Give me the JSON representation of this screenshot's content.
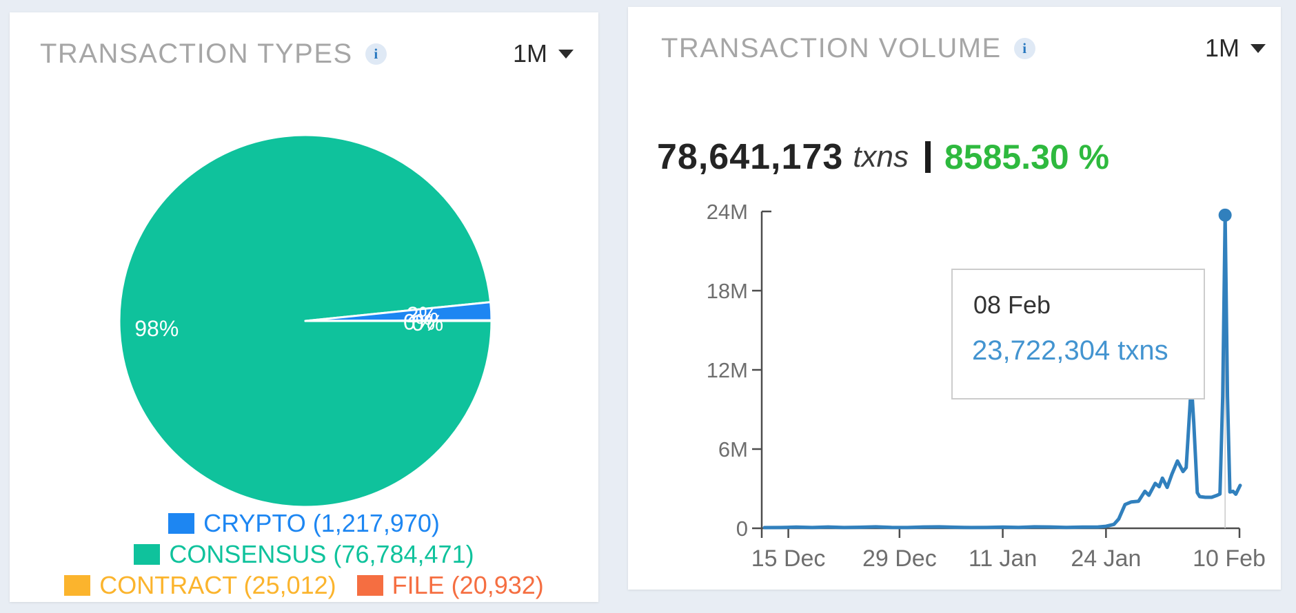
{
  "types_card": {
    "title": "TRANSACTION TYPES",
    "info_glyph": "i",
    "range": "1M",
    "legend": [
      {
        "label": "CRYPTO (1,217,970)",
        "color": "#1d86f2"
      },
      {
        "label": "CONSENSUS (76,784,471)",
        "color": "#0fc29c"
      },
      {
        "label": "CONTRACT (25,012)",
        "color": "#fbb42d"
      },
      {
        "label": "FILE (20,932)",
        "color": "#f56e41"
      }
    ]
  },
  "volume_card": {
    "title": "TRANSACTION VOLUME",
    "info_glyph": "i",
    "range": "1M",
    "total_txns": "78,641,173",
    "total_unit": "txns",
    "change_pct": "8585.30 %",
    "change_color": "#2eb93e",
    "tooltip": {
      "date": "08 Feb",
      "value": "23,722,304 txns"
    }
  },
  "chart_data": [
    {
      "type": "pie",
      "title": "TRANSACTION TYPES",
      "direction": "ccw",
      "start_angle_deg": 0,
      "slices": [
        {
          "label": "FILE",
          "value": 20932,
          "pct_label": "0%",
          "color": "#f56e41"
        },
        {
          "label": "CONTRACT",
          "value": 25012,
          "pct_label": "0%",
          "color": "#fbb42d"
        },
        {
          "label": "CRYPTO",
          "value": 1217970,
          "pct_label": "2%",
          "color": "#1d86f2"
        },
        {
          "label": "CONSENSUS",
          "value": 76784471,
          "pct_label": "98%",
          "color": "#0fc29c"
        }
      ]
    },
    {
      "type": "line",
      "title": "TRANSACTION VOLUME",
      "line_color": "#3180bd",
      "axis_color": "#4c4c4c",
      "x_tick_labels": [
        "15 Dec",
        "29 Dec",
        "11 Jan",
        "24 Jan",
        "10 Feb"
      ],
      "x_tick_days": [
        3,
        17,
        30,
        43,
        60
      ],
      "y_tick_labels": [
        "0",
        "6M",
        "12M",
        "18M",
        "24M"
      ],
      "y_tick_values": [
        0,
        6000000,
        12000000,
        18000000,
        24000000
      ],
      "ylim": [
        0,
        24000000
      ],
      "series": [
        {
          "name": "txns",
          "points": [
            [
              0,
              50000
            ],
            [
              2,
              60000
            ],
            [
              4,
              90000
            ],
            [
              6,
              55000
            ],
            [
              8,
              100000
            ],
            [
              10,
              60000
            ],
            [
              12,
              80000
            ],
            [
              14,
              110000
            ],
            [
              16,
              70000
            ],
            [
              18,
              60000
            ],
            [
              20,
              100000
            ],
            [
              22,
              110000
            ],
            [
              24,
              80000
            ],
            [
              26,
              60000
            ],
            [
              28,
              70000
            ],
            [
              30,
              90000
            ],
            [
              32,
              70000
            ],
            [
              34,
              110000
            ],
            [
              36,
              100000
            ],
            [
              38,
              70000
            ],
            [
              40,
              90000
            ],
            [
              42,
              100000
            ],
            [
              43,
              150000
            ],
            [
              44,
              300000
            ],
            [
              44.6,
              700000
            ],
            [
              45.4,
              1800000
            ],
            [
              46.2,
              2000000
            ],
            [
              47.1,
              2050000
            ],
            [
              47.9,
              2800000
            ],
            [
              48.4,
              2500000
            ],
            [
              49.2,
              3400000
            ],
            [
              49.7,
              3150000
            ],
            [
              50.1,
              3800000
            ],
            [
              50.7,
              3100000
            ],
            [
              51.3,
              4100000
            ],
            [
              52,
              5100000
            ],
            [
              52.7,
              4300000
            ],
            [
              53.1,
              4600000
            ],
            [
              53.45,
              8000000
            ],
            [
              53.75,
              11000000
            ],
            [
              54.05,
              8000000
            ],
            [
              54.5,
              2700000
            ],
            [
              54.8,
              2400000
            ],
            [
              55.5,
              2350000
            ],
            [
              56.3,
              2350000
            ],
            [
              57,
              2500000
            ],
            [
              57.35,
              2600000
            ],
            [
              57.7,
              10000000
            ],
            [
              58,
              23722304
            ],
            [
              58.3,
              10000000
            ],
            [
              58.6,
              2750000
            ],
            [
              59,
              2800000
            ],
            [
              59.35,
              2580000
            ],
            [
              59.9,
              3250000
            ]
          ]
        }
      ],
      "marker": {
        "day": 58,
        "date": "08 Feb",
        "value": 23722304
      }
    }
  ]
}
